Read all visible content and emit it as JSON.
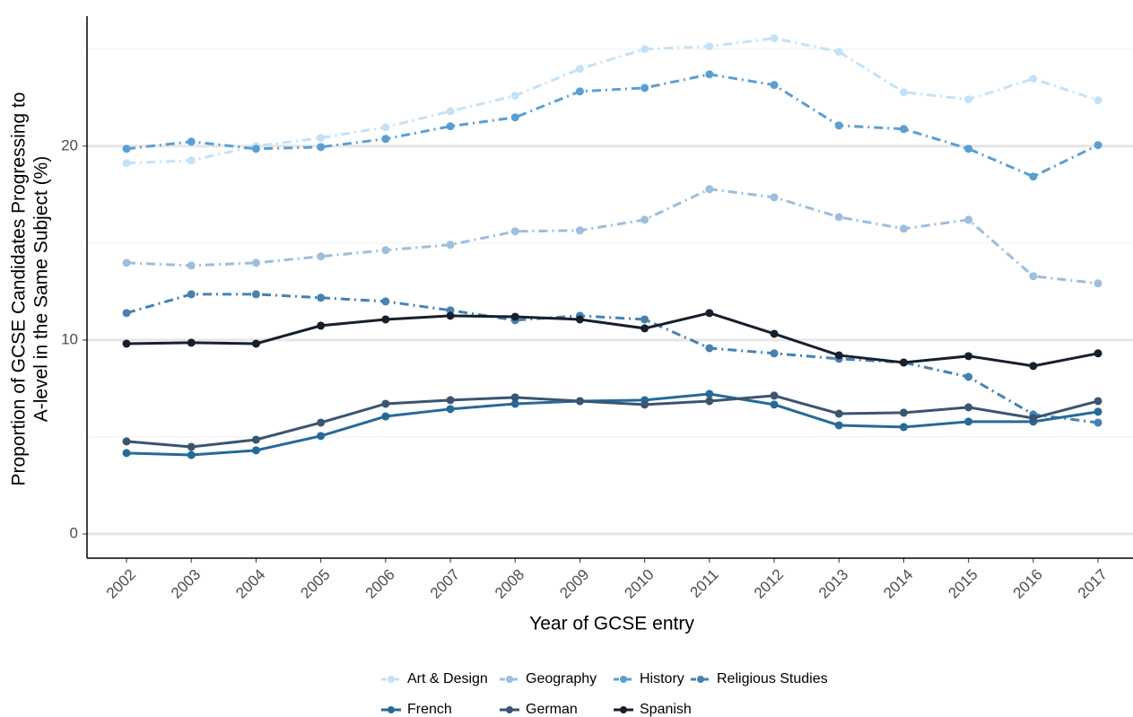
{
  "chart_data": {
    "type": "line",
    "x_label": "Year of GCSE entry",
    "y_label": [
      "Proportion of GCSE Candidates Progressing to",
      "A-level in the Same Subject (%)"
    ],
    "x": [
      2002,
      2003,
      2004,
      2005,
      2006,
      2007,
      2008,
      2009,
      2010,
      2011,
      2012,
      2013,
      2014,
      2015,
      2016,
      2017
    ],
    "xlim": [
      2001.39,
      2017.54
    ],
    "xticks": [
      2002,
      2003,
      2004,
      2005,
      2006,
      2007,
      2008,
      2009,
      2010,
      2011,
      2012,
      2013,
      2014,
      2015,
      2016,
      2017
    ],
    "ylim": [
      -1.25,
      26.7
    ],
    "yticks": [
      0,
      10,
      20
    ],
    "minor_yticks": [
      5,
      15,
      25
    ],
    "grid": true,
    "legend": "bottom",
    "series": [
      {
        "name": "Art & Design",
        "color": "#c4e2f7",
        "dash": "dashdot",
        "values": [
          19.12,
          19.26,
          20.0,
          20.42,
          20.97,
          21.8,
          22.6,
          23.98,
          25.0,
          25.14,
          25.56,
          24.86,
          22.78,
          22.41,
          23.47,
          22.36
        ]
      },
      {
        "name": "Geography",
        "color": "#9dbedd",
        "dash": "dashdot",
        "values": [
          13.98,
          13.84,
          13.98,
          14.31,
          14.63,
          14.91,
          15.6,
          15.65,
          16.2,
          17.78,
          17.36,
          16.34,
          15.74,
          16.2,
          13.29,
          12.92
        ]
      },
      {
        "name": "History",
        "color": "#5a9fd3",
        "dash": "dashdot",
        "values": [
          19.86,
          20.23,
          19.86,
          19.95,
          20.37,
          21.02,
          21.48,
          22.82,
          23.0,
          23.7,
          23.15,
          21.06,
          20.88,
          19.86,
          18.43,
          20.05
        ]
      },
      {
        "name": "Religious Studies",
        "color": "#4781b1",
        "dash": "dashdot",
        "values": [
          11.39,
          12.36,
          12.36,
          12.18,
          11.99,
          11.53,
          11.02,
          11.25,
          11.06,
          9.58,
          9.31,
          9.03,
          8.84,
          8.1,
          6.16,
          5.74
        ]
      },
      {
        "name": "French",
        "color": "#266a9a",
        "dash": "solid",
        "values": [
          4.17,
          4.07,
          4.31,
          5.05,
          6.06,
          6.44,
          6.71,
          6.85,
          6.9,
          7.22,
          6.67,
          5.6,
          5.51,
          5.79,
          5.79,
          6.3
        ]
      },
      {
        "name": "German",
        "color": "#3a5572",
        "dash": "solid",
        "values": [
          4.77,
          4.49,
          4.86,
          5.74,
          6.71,
          6.9,
          7.04,
          6.85,
          6.67,
          6.85,
          7.13,
          6.2,
          6.25,
          6.53,
          5.97,
          6.85
        ]
      },
      {
        "name": "Spanish",
        "color": "#16202c",
        "dash": "solid",
        "values": [
          9.81,
          9.86,
          9.81,
          10.74,
          11.06,
          11.25,
          11.2,
          11.06,
          10.6,
          11.39,
          10.32,
          9.21,
          8.84,
          9.17,
          8.66,
          9.31
        ]
      }
    ]
  }
}
